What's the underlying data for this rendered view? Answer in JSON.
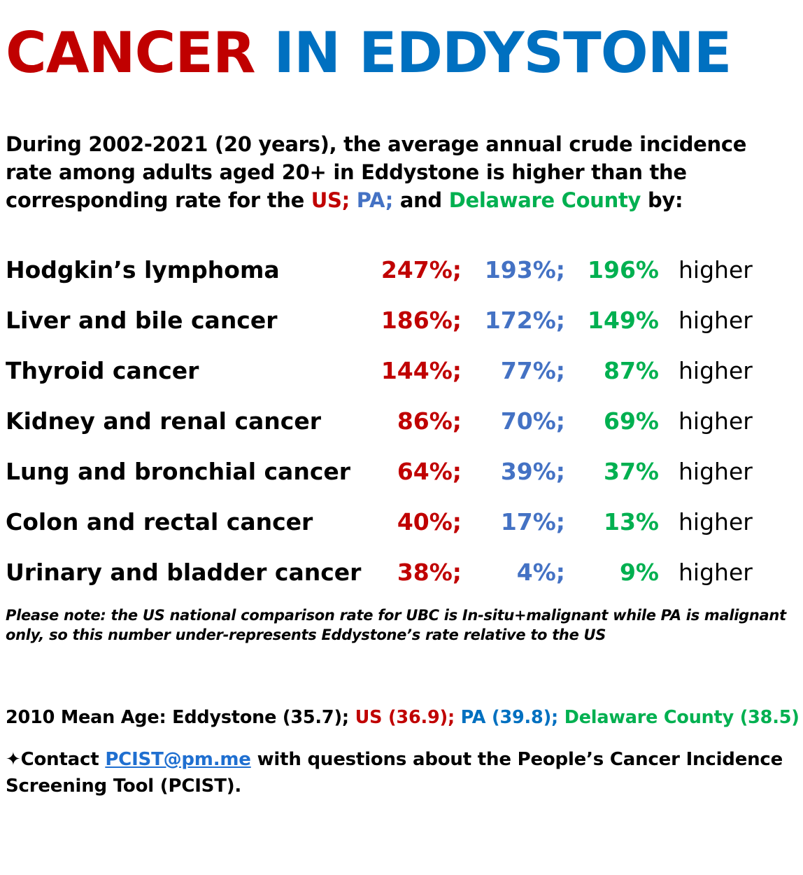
{
  "colors": {
    "us": "#c00000",
    "pa": "#4472c4",
    "delaware": "#00b050",
    "title_blue": "#0070c0",
    "link": "#1f6fd0"
  },
  "title": {
    "part1": "CANCER",
    "part2": "IN EDDYSTONE"
  },
  "intro": {
    "text_before": "During 2002-2021 (20 years), the average annual crude incidence rate among adults aged 20+ in Eddystone is higher than the corresponding rate for the ",
    "us": "US;",
    "pa": "PA;",
    "and": "and",
    "delaware": "Delaware County",
    "text_after": "by:"
  },
  "rows": [
    {
      "name": "Hodgkin’s lymphoma",
      "us": "247%;",
      "pa": "193%;",
      "dc": "196%",
      "suffix": "higher"
    },
    {
      "name": "Liver and bile cancer",
      "us": "186%;",
      "pa": "172%;",
      "dc": "149%",
      "suffix": "higher"
    },
    {
      "name": "Thyroid cancer",
      "us": "144%;",
      "pa": "77%;",
      "dc": "87%",
      "suffix": "higher"
    },
    {
      "name": "Kidney and renal cancer",
      "us": "86%;",
      "pa": "70%;",
      "dc": "69%",
      "suffix": "higher"
    },
    {
      "name": "Lung and bronchial cancer",
      "us": "64%;",
      "pa": "39%;",
      "dc": "37%",
      "suffix": "higher"
    },
    {
      "name": "Colon and rectal cancer",
      "us": "40%;",
      "pa": "17%;",
      "dc": "13%",
      "suffix": "higher"
    },
    {
      "name": "Urinary and bladder cancer",
      "us": "38%;",
      "pa": "4%;",
      "dc": "9%",
      "suffix": "higher"
    }
  ],
  "note": "Please note: the US national comparison rate for UBC is In-situ+malignant while PA is malignant only, so this number under-represents Eddystone’s rate relative to the US",
  "mean_age": {
    "label": "2010 Mean Age: Eddystone (35.7);",
    "us": "US (36.9);",
    "pa": "PA (39.8);",
    "delaware": "Delaware County (38.5)"
  },
  "contact": {
    "star": "✦",
    "prefix": "Contact",
    "email": "PCIST@pm.me",
    "suffix": "with questions about the People’s Cancer Incidence Screening Tool (PCIST)."
  }
}
